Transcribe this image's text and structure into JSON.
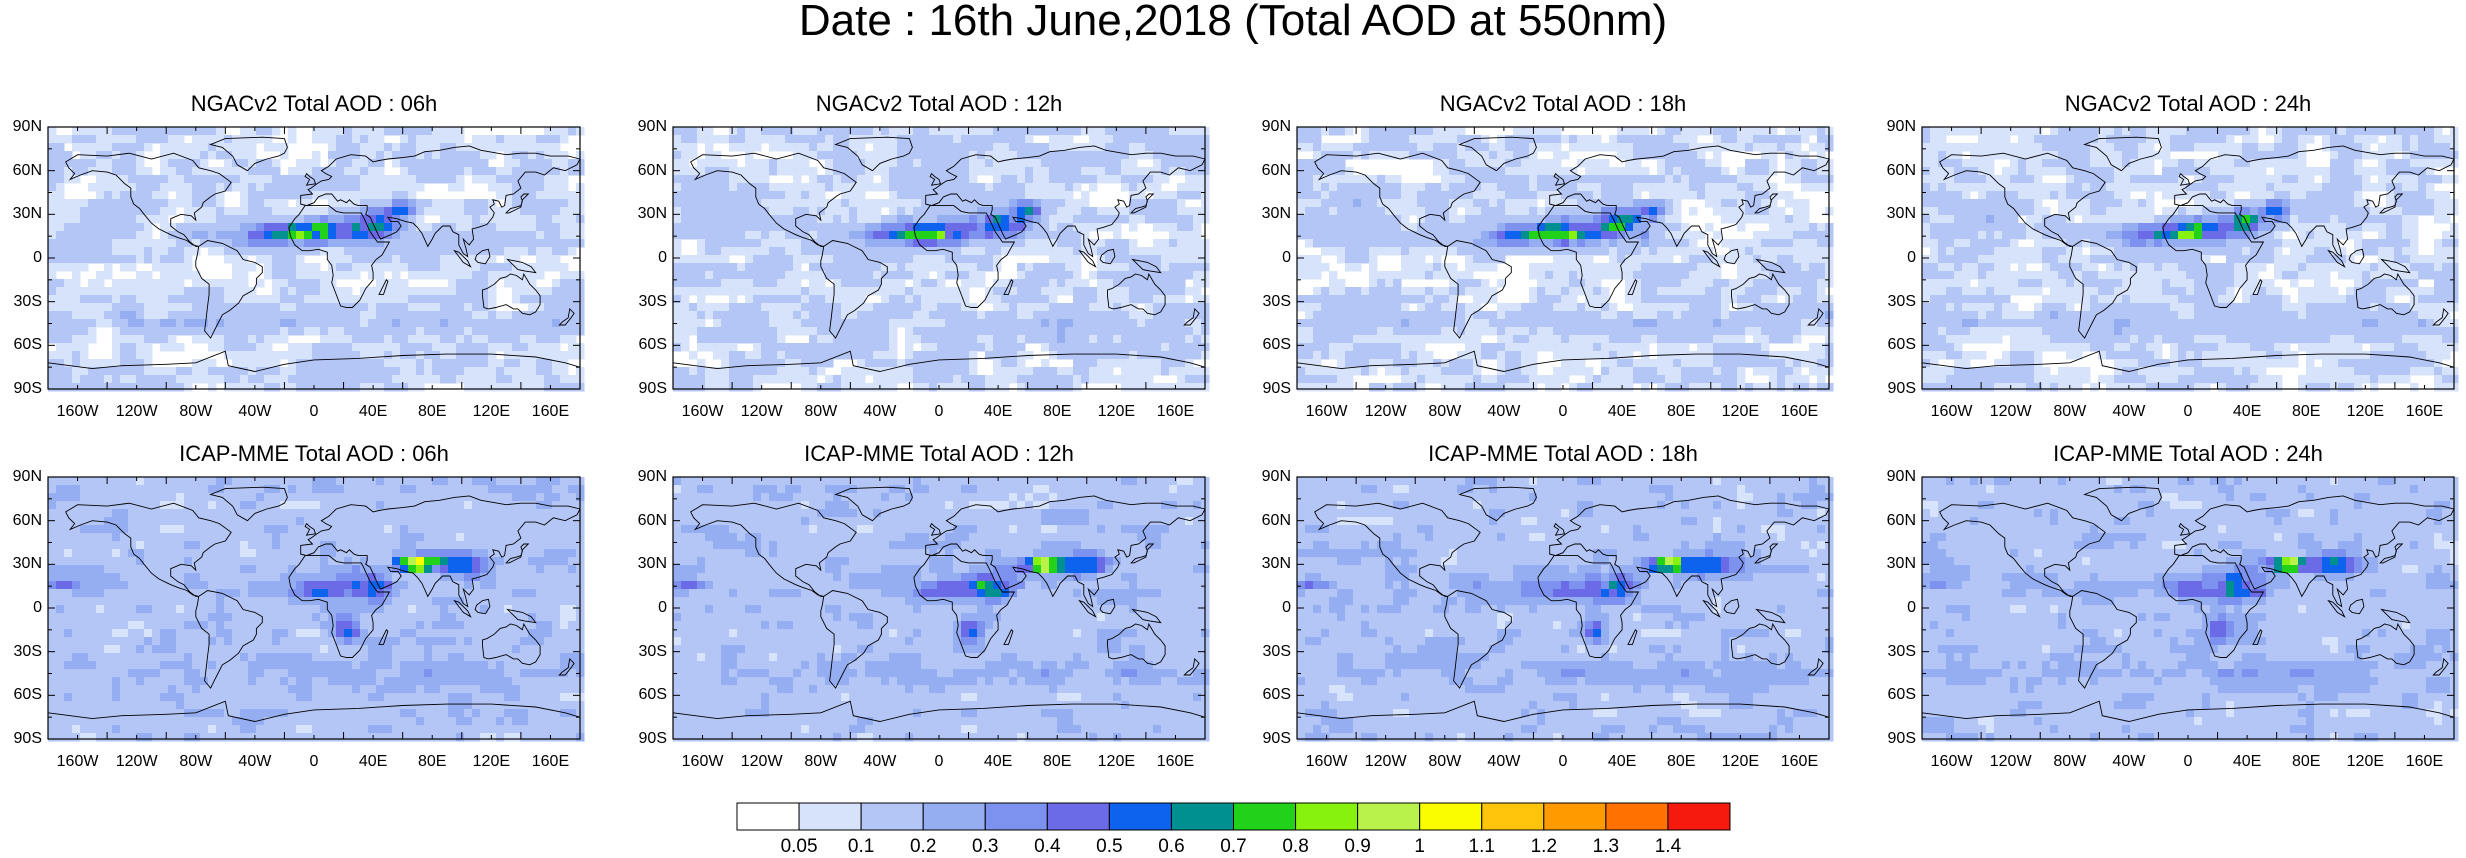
{
  "title": "Date : 16th June,2018 (Total AOD at 550nm)",
  "panels": [
    {
      "title": "NGACv2 Total AOD : 06h",
      "model": "ngac"
    },
    {
      "title": "NGACv2 Total AOD : 12h",
      "model": "ngac"
    },
    {
      "title": "NGACv2 Total AOD : 18h",
      "model": "ngac"
    },
    {
      "title": "NGACv2 Total AOD : 24h",
      "model": "ngac"
    },
    {
      "title": "ICAP-MME Total AOD : 06h",
      "model": "icap"
    },
    {
      "title": "ICAP-MME Total AOD : 12h",
      "model": "icap"
    },
    {
      "title": "ICAP-MME Total AOD : 18h",
      "model": "icap"
    },
    {
      "title": "ICAP-MME Total AOD : 24h",
      "model": "icap"
    }
  ],
  "lat_ticks": [
    "90N",
    "60N",
    "30N",
    "0",
    "30S",
    "60S",
    "90S"
  ],
  "lon_ticks": [
    "160W",
    "120W",
    "80W",
    "40W",
    "0",
    "40E",
    "80E",
    "120E",
    "160E"
  ],
  "colorbar": {
    "labels": [
      "0.05",
      "0.1",
      "0.2",
      "0.3",
      "0.4",
      "0.5",
      "0.6",
      "0.7",
      "0.8",
      "0.9",
      "1",
      "1.1",
      "1.2",
      "1.3",
      "1.4"
    ],
    "colors": [
      "#ffffff",
      "#d7e3fb",
      "#b4c6f6",
      "#95aef2",
      "#7d92ee",
      "#6b6be8",
      "#0d62ee",
      "#00908f",
      "#22d11a",
      "#86f20d",
      "#b9f24a",
      "#fafc00",
      "#ffc40b",
      "#ff9a00",
      "#ff7100",
      "#f51a0d"
    ]
  }
}
